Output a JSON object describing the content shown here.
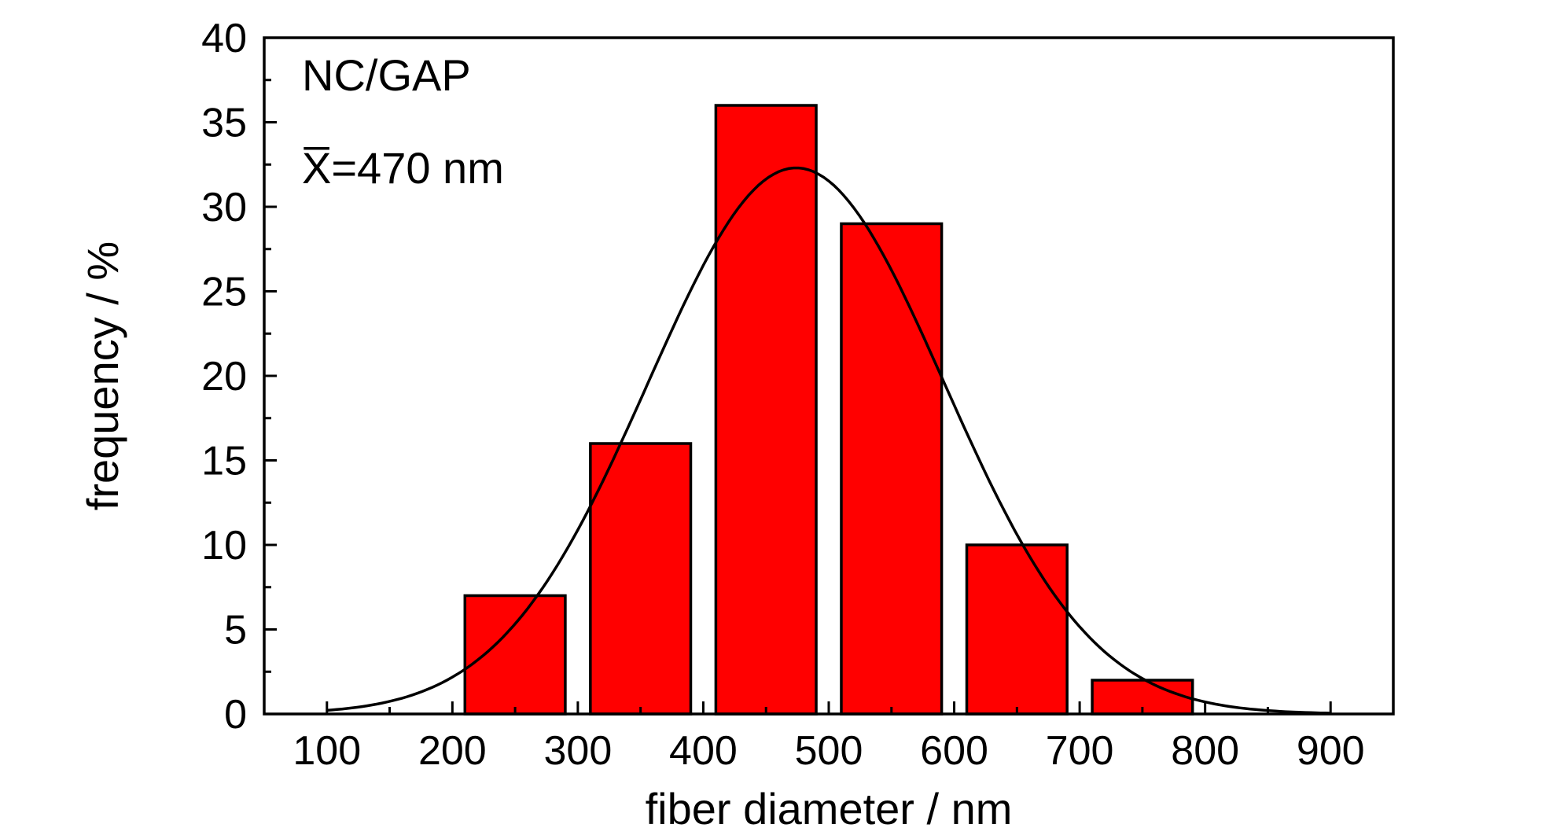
{
  "chart_data": {
    "type": "bar",
    "xlabel": "fiber diameter / nm",
    "ylabel": "frequency / %",
    "xlim": [
      50,
      950
    ],
    "ylim": [
      0,
      40
    ],
    "x_ticks": [
      "100",
      "200",
      "300",
      "400",
      "500",
      "600",
      "700",
      "800",
      "900"
    ],
    "y_ticks": [
      "0",
      "5",
      "10",
      "15",
      "20",
      "25",
      "30",
      "35",
      "40"
    ],
    "bars": [
      {
        "x": 250,
        "value": 7
      },
      {
        "x": 350,
        "value": 16
      },
      {
        "x": 450,
        "value": 36
      },
      {
        "x": 550,
        "value": 29
      },
      {
        "x": 650,
        "value": 10
      },
      {
        "x": 750,
        "value": 2
      }
    ],
    "bar_width": 80,
    "bar_color": "#ff0000",
    "fit_curve": {
      "type": "gaussian",
      "center": 474,
      "amplitude": 32.3,
      "sigma": 118
    },
    "annotations": {
      "label": "NC/GAP",
      "mean_text": "X̅=470 nm"
    },
    "grid": false
  }
}
